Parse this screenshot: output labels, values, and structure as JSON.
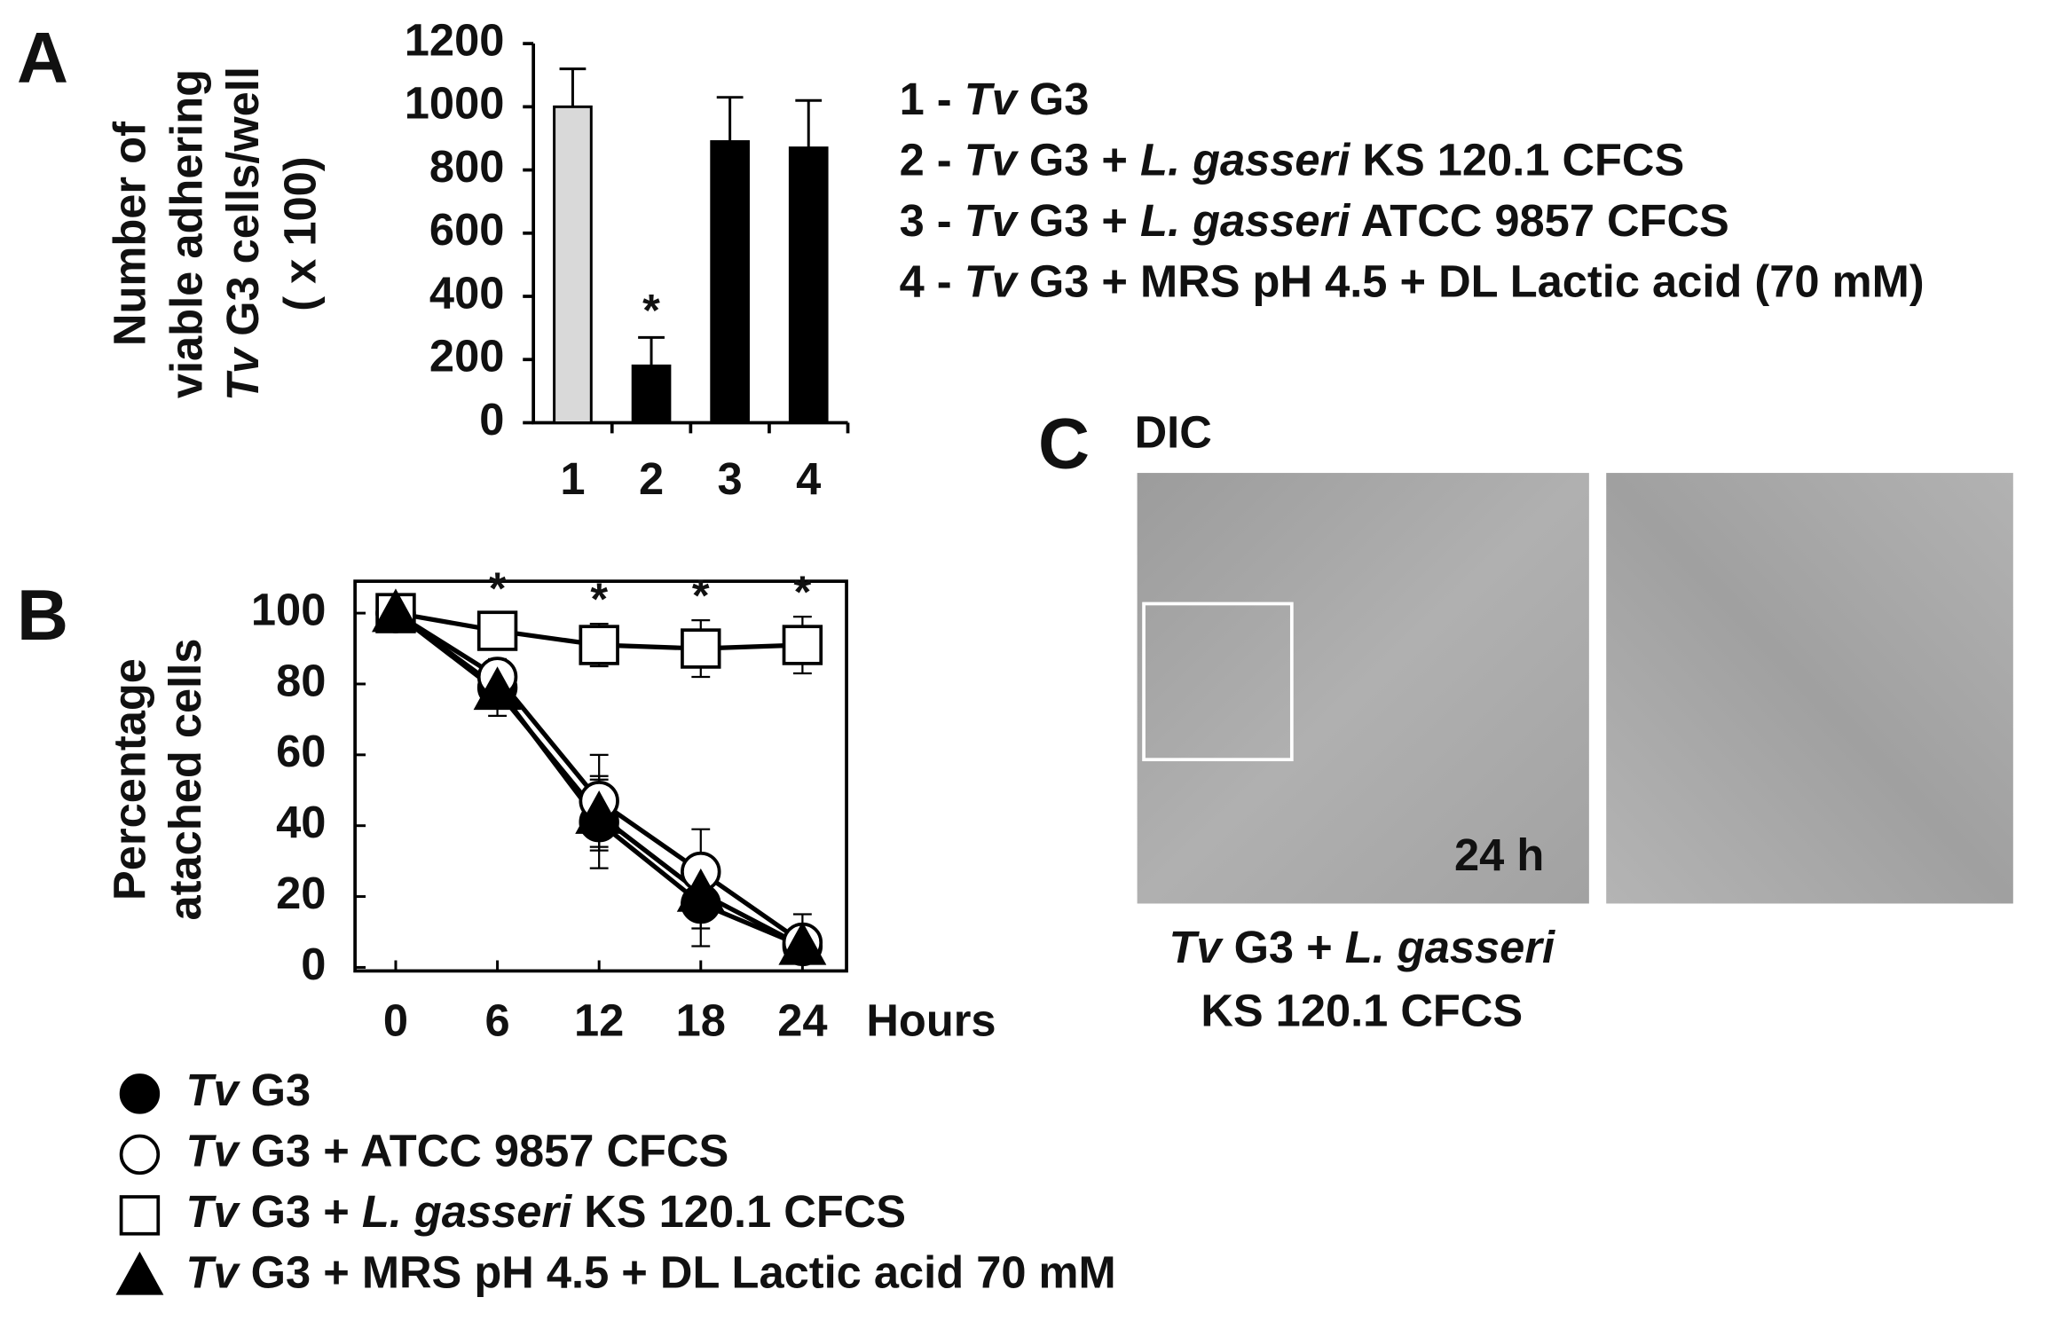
{
  "panel_labels": [
    "A",
    "B",
    "C"
  ],
  "chart_data": [
    {
      "type": "bar",
      "categories": [
        "1",
        "2",
        "3",
        "4"
      ],
      "values": [
        1000,
        180,
        890,
        870
      ],
      "errors": [
        120,
        90,
        140,
        150
      ],
      "colors": [
        "#d9d9d9",
        "#000000",
        "#000000",
        "#000000"
      ],
      "point_labels": [
        null,
        "*",
        null,
        null
      ],
      "ylim": [
        0,
        1200
      ],
      "yticks": [
        0,
        200,
        400,
        600,
        800,
        1000,
        1200
      ],
      "y_label": [
        "Number of",
        "viable adhering",
        [
          {
            "text": "Tv",
            "italic": true
          },
          {
            "text": " G3 cells/well",
            "italic": false
          }
        ],
        "( x 100)"
      ],
      "legend": [
        [
          {
            "text": "1 - ",
            "italic": false
          },
          {
            "text": "Tv",
            "italic": true
          },
          {
            "text": " G3",
            "italic": false
          }
        ],
        [
          {
            "text": "2 - ",
            "italic": false
          },
          {
            "text": "Tv",
            "italic": true
          },
          {
            "text": " G3 + ",
            "italic": false
          },
          {
            "text": "L. gasseri",
            "italic": true
          },
          {
            "text": " KS 120.1 CFCS",
            "italic": false
          }
        ],
        [
          {
            "text": "3 - ",
            "italic": false
          },
          {
            "text": "Tv",
            "italic": true
          },
          {
            "text": " G3 + ",
            "italic": false
          },
          {
            "text": "L. gasseri",
            "italic": true
          },
          {
            "text": " ATCC 9857 CFCS",
            "italic": false
          }
        ],
        [
          {
            "text": "4 - ",
            "italic": false
          },
          {
            "text": "Tv",
            "italic": true
          },
          {
            "text": " G3 + MRS pH 4.5 + DL Lactic acid (70 mM)",
            "italic": false
          }
        ]
      ]
    },
    {
      "type": "line",
      "x": [
        0,
        6,
        12,
        18,
        24
      ],
      "xlim": [
        -2.4,
        26.6
      ],
      "ylim": [
        -1,
        109
      ],
      "xticks": [
        0,
        6,
        12,
        18,
        24
      ],
      "yticks": [
        0,
        20,
        40,
        60,
        80,
        100
      ],
      "x_label": "Hours",
      "y_label": [
        "Percentage",
        "atached cells"
      ],
      "series": [
        {
          "name": [
            {
              "text": "Tv",
              "italic": true
            },
            {
              "text": " G3",
              "italic": false
            }
          ],
          "marker": "circle",
          "color": "#000000",
          "fill": "#000000",
          "values": [
            100,
            79,
            41,
            18,
            6
          ],
          "errors": [
            0,
            8,
            13,
            12,
            5
          ]
        },
        {
          "name": [
            {
              "text": "Tv",
              "italic": true
            },
            {
              "text": " G3 + ATCC 9857 CFCS",
              "italic": false
            }
          ],
          "marker": "circle",
          "color": "#000000",
          "fill": "#ffffff",
          "values": [
            100,
            82,
            47,
            27,
            7
          ],
          "errors": [
            0,
            5,
            13,
            12,
            8
          ]
        },
        {
          "name": [
            {
              "text": "Tv",
              "italic": true
            },
            {
              "text": " G3 + ",
              "italic": false
            },
            {
              "text": "L. gasseri",
              "italic": true
            },
            {
              "text": " KS 120.1 CFCS",
              "italic": false
            }
          ],
          "marker": "square",
          "color": "#000000",
          "fill": "#ffffff",
          "values": [
            100,
            95,
            91,
            90,
            91
          ],
          "errors": [
            0,
            5,
            6,
            8,
            8
          ],
          "point_labels": [
            null,
            "*",
            "*",
            "*",
            "*"
          ]
        },
        {
          "name": [
            {
              "text": "Tv",
              "italic": true
            },
            {
              "text": " G3 + MRS pH 4.5 + DL Lactic acid 70 mM",
              "italic": false
            }
          ],
          "marker": "triangle",
          "color": "#000000",
          "fill": "#000000",
          "values": [
            100,
            78,
            43,
            21,
            6
          ],
          "errors": [
            0,
            5,
            10,
            10,
            5
          ]
        }
      ]
    }
  ],
  "panel_c": {
    "title": "DIC",
    "time_label": "24 h",
    "caption": [
      [
        {
          "text": "Tv",
          "italic": true
        },
        {
          "text": " G3 + ",
          "italic": false
        },
        {
          "text": "L. gasseri",
          "italic": true
        }
      ],
      [
        {
          "text": "KS 120.1 CFCS",
          "italic": false
        }
      ]
    ]
  }
}
